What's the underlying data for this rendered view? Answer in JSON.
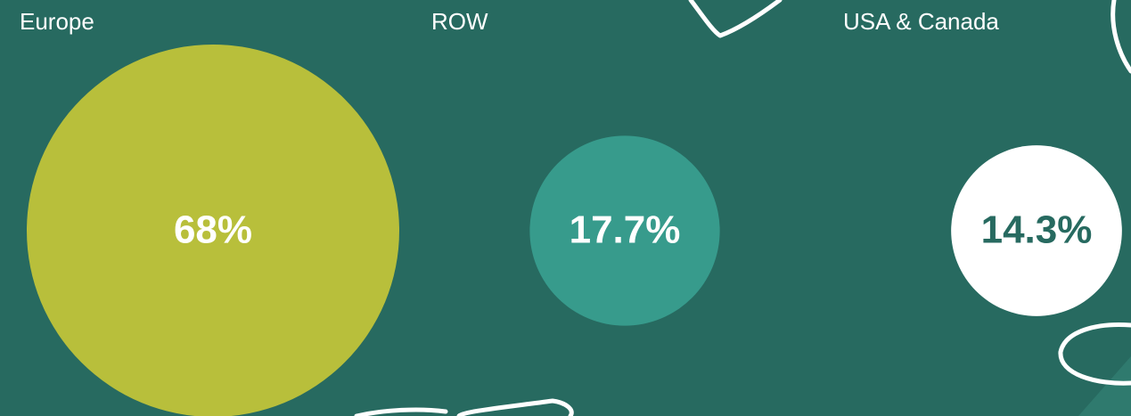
{
  "chart_data": {
    "type": "bubble",
    "categories": [
      "Europe",
      "ROW",
      "USA & Canada"
    ],
    "values": [
      68,
      17.7,
      14.3
    ],
    "value_labels": [
      "68%",
      "17.7%",
      "14.3%"
    ],
    "colors": [
      "#b8bf3b",
      "#379b8c",
      "#ffffff"
    ],
    "label_colors": [
      "#ffffff",
      "#ffffff",
      "#276a60"
    ]
  }
}
